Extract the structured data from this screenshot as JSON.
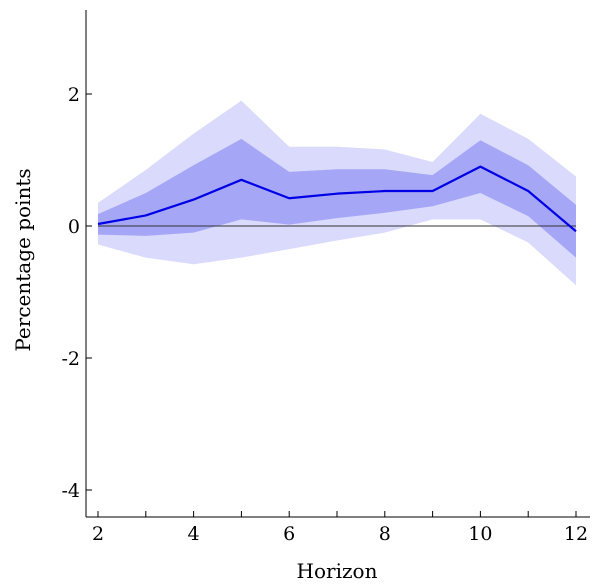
{
  "chart_data": {
    "type": "line",
    "title": "",
    "xlabel": "Horizon",
    "ylabel": "Percentage points",
    "xlim": [
      2,
      12
    ],
    "ylim": [
      -4,
      3
    ],
    "x_ticks": [
      2,
      4,
      6,
      8,
      10,
      12
    ],
    "y_ticks": [
      -4,
      -2,
      0,
      2
    ],
    "y_tick_labels": [
      "-4",
      "-2",
      "0",
      "2"
    ],
    "x": [
      2,
      3,
      4,
      5,
      6,
      7,
      8,
      9,
      10,
      11,
      12
    ],
    "series": [
      {
        "role": "point_estimate",
        "values": [
          0.03,
          0.16,
          0.4,
          0.7,
          0.42,
          0.49,
          0.53,
          0.53,
          0.9,
          0.53,
          -0.08
        ]
      },
      {
        "role": "inner_band",
        "lower": [
          -0.13,
          -0.15,
          -0.1,
          0.1,
          0.02,
          0.12,
          0.2,
          0.3,
          0.5,
          0.15,
          -0.48
        ],
        "upper": [
          0.18,
          0.5,
          0.92,
          1.32,
          0.82,
          0.86,
          0.86,
          0.77,
          1.3,
          0.92,
          0.32
        ]
      },
      {
        "role": "outer_band",
        "lower": [
          -0.28,
          -0.48,
          -0.58,
          -0.48,
          -0.35,
          -0.22,
          -0.1,
          0.1,
          0.1,
          -0.25,
          -0.9
        ],
        "upper": [
          0.35,
          0.85,
          1.4,
          1.9,
          1.2,
          1.2,
          1.16,
          0.97,
          1.7,
          1.32,
          0.75
        ]
      }
    ],
    "reference_line": 0,
    "colors": {
      "line": "#0000e6",
      "inner_band": "#a6a6f7",
      "outer_band": "#dadafc",
      "zero_line": "#333333",
      "axis": "#000000"
    },
    "grid": false,
    "legend": "none"
  }
}
